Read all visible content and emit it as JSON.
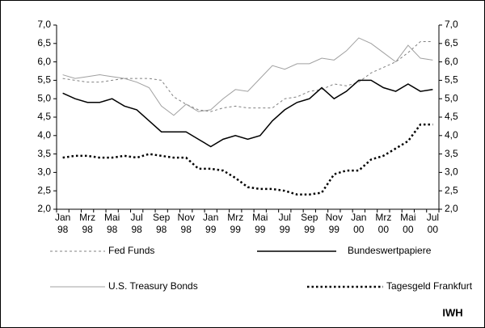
{
  "chart_data": {
    "type": "line",
    "categories": [
      "Jan 98",
      null,
      "Mrz 98",
      null,
      "Mai 98",
      null,
      "Jul 98",
      null,
      "Sep 98",
      null,
      "Nov 98",
      null,
      "Jan 99",
      null,
      "Mrz 99",
      null,
      "Mai 99",
      null,
      "Jul 99",
      null,
      "Sep 99",
      null,
      "Nov 99",
      null,
      "Jan 00",
      null,
      "Mrz 00",
      null,
      "Mai 00",
      null,
      "Jul 00"
    ],
    "series": [
      {
        "name": "Fed Funds",
        "color": "#808080",
        "values": [
          5.55,
          5.5,
          5.45,
          5.45,
          5.5,
          5.55,
          5.55,
          5.55,
          5.5,
          5.05,
          4.85,
          4.7,
          4.65,
          4.75,
          4.8,
          4.75,
          4.75,
          4.75,
          5.0,
          5.05,
          5.2,
          5.25,
          5.4,
          5.35,
          5.45,
          5.7,
          5.85,
          6.0,
          6.25,
          6.55,
          6.55
        ]
      },
      {
        "name": "Bundeswertpapiere",
        "color": "#000000",
        "values": [
          5.15,
          5.0,
          4.9,
          4.9,
          5.0,
          4.8,
          4.7,
          4.4,
          4.1,
          4.1,
          4.1,
          3.9,
          3.7,
          3.9,
          4.0,
          3.9,
          4.0,
          4.4,
          4.7,
          4.9,
          5.0,
          5.3,
          5.0,
          5.2,
          5.5,
          5.5,
          5.3,
          5.2,
          5.4,
          5.2,
          5.25
        ]
      },
      {
        "name": "U.S. Treasury Bonds",
        "color": "#a0a0a0",
        "values": [
          5.65,
          5.55,
          5.6,
          5.65,
          5.6,
          5.55,
          5.45,
          5.3,
          4.8,
          4.55,
          4.85,
          4.65,
          4.7,
          5.0,
          5.25,
          5.2,
          5.55,
          5.9,
          5.8,
          5.95,
          5.95,
          6.1,
          6.05,
          6.3,
          6.65,
          6.5,
          6.25,
          6.0,
          6.45,
          6.1,
          6.05
        ]
      },
      {
        "name": "Tagesgeld Frankfurt",
        "color": "#000000",
        "values": [
          3.4,
          3.45,
          3.45,
          3.4,
          3.4,
          3.45,
          3.4,
          3.5,
          3.45,
          3.4,
          3.4,
          3.1,
          3.1,
          3.05,
          2.85,
          2.6,
          2.55,
          2.55,
          2.5,
          2.4,
          2.4,
          2.45,
          2.95,
          3.05,
          3.05,
          3.35,
          3.45,
          3.65,
          3.85,
          4.3,
          4.3
        ]
      }
    ],
    "ylim": [
      2.0,
      7.0
    ],
    "yticks": [
      {
        "value": 2.0,
        "label": "2,0"
      },
      {
        "value": 2.5,
        "label": "2,5"
      },
      {
        "value": 3.0,
        "label": "3,0"
      },
      {
        "value": 3.5,
        "label": "3,5"
      },
      {
        "value": 4.0,
        "label": "4,0"
      },
      {
        "value": 4.5,
        "label": "4,5"
      },
      {
        "value": 5.0,
        "label": "5,0"
      },
      {
        "value": 5.5,
        "label": "5,5"
      },
      {
        "value": 6.0,
        "label": "6,0"
      },
      {
        "value": 6.5,
        "label": "6,5"
      },
      {
        "value": 7.0,
        "label": "7,0"
      }
    ],
    "y2lim": [
      2.0,
      7.0
    ],
    "y2ticks": [
      {
        "value": 2.0,
        "label": "2,0"
      },
      {
        "value": 2.5,
        "label": "2,5"
      },
      {
        "value": 3.0,
        "label": "3,0"
      },
      {
        "value": 3.5,
        "label": "3,5"
      },
      {
        "value": 4.0,
        "label": "4,0"
      },
      {
        "value": 4.5,
        "label": "4,5"
      },
      {
        "value": 5.0,
        "label": "5,0"
      },
      {
        "value": 5.5,
        "label": "5,5"
      },
      {
        "value": 6.0,
        "label": "6,0"
      },
      {
        "value": 6.5,
        "label": "6,5"
      },
      {
        "value": 7.0,
        "label": "7,0"
      }
    ],
    "grid": false,
    "source": "IWH"
  }
}
